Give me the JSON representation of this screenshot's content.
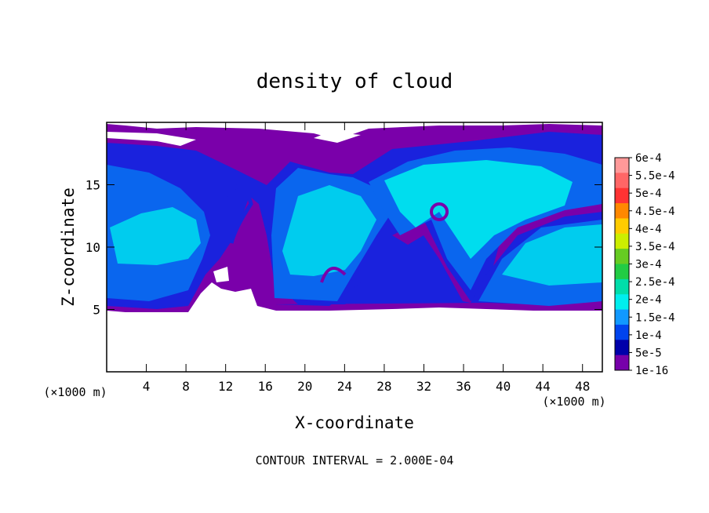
{
  "chart_data": {
    "type": "heatmap",
    "title": "density of cloud",
    "xlabel": "X-coordinate",
    "ylabel": "Z-coordinate",
    "x_unit_left": "(×1000 m)",
    "x_unit_right": "(×1000 m)",
    "xlim": [
      0,
      50
    ],
    "ylim": [
      0,
      20
    ],
    "x_ticks": [
      "4",
      "8",
      "12",
      "16",
      "20",
      "24",
      "28",
      "32",
      "36",
      "40",
      "44",
      "48"
    ],
    "y_ticks": [
      "5",
      "10",
      "15"
    ],
    "x_tick_values": [
      4,
      8,
      12,
      16,
      20,
      24,
      28,
      32,
      36,
      40,
      44,
      48
    ],
    "y_tick_values": [
      5,
      10,
      15
    ],
    "footer": "CONTOUR INTERVAL = 2.000E-04",
    "colorbar": {
      "labels": [
        "6e-4",
        "5.5e-4",
        "5e-4",
        "4.5e-4",
        "4e-4",
        "3.5e-4",
        "3e-4",
        "2.5e-4",
        "2e-4",
        "1.5e-4",
        "1e-4",
        "5e-5",
        "1e-16"
      ],
      "colors": [
        "#ff9999",
        "#ff6666",
        "#ff3333",
        "#ff8800",
        "#ffcc00",
        "#ccee00",
        "#66cc22",
        "#22cc44",
        "#00ddaa",
        "#00eeee",
        "#1199ff",
        "#0044ee",
        "#0000aa",
        "#7700aa"
      ]
    },
    "grid": false
  }
}
